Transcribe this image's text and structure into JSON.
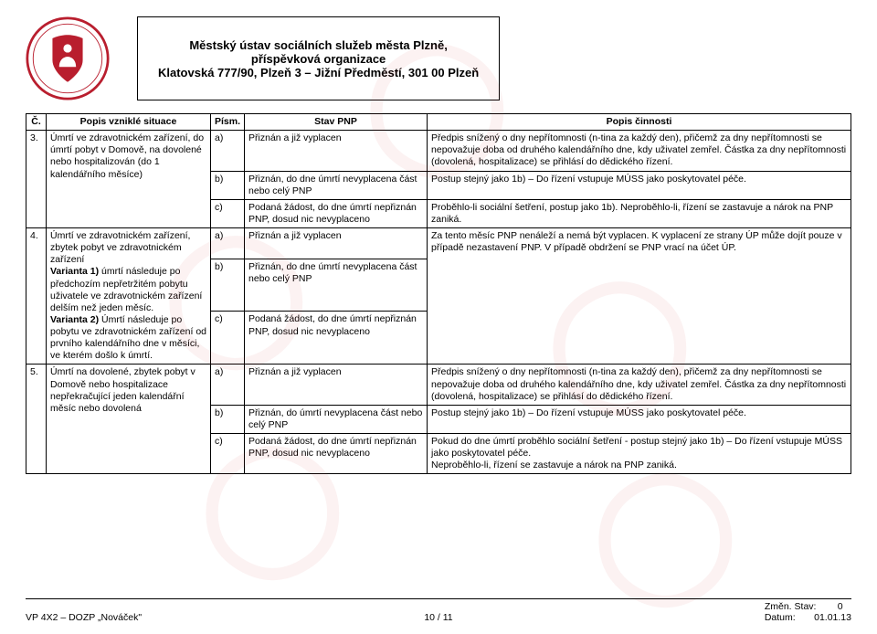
{
  "colors": {
    "brand_red": "#b91e2e",
    "watermark_rgba": "rgba(200,30,40,0.06)",
    "text": "#000000",
    "background": "#ffffff"
  },
  "header": {
    "org_line1": "Městský ústav sociálních služeb města Plzně,",
    "org_line2": "příspěvková organizace",
    "org_line3": "Klatovská 777/90, Plzeň 3 – Jižní Předměstí, 301 00 Plzeň"
  },
  "table": {
    "headers": {
      "num": "Č.",
      "situace": "Popis vzniklé situace",
      "pism": "Písm.",
      "stav": "Stav PNP",
      "popis": "Popis činnosti"
    },
    "rows": [
      {
        "num": "3.",
        "situace": "Úmrtí ve zdravotnickém zařízení, do úmrtí pobyt v Domově, na dovolené nebo hospitalizován (do 1 kalendářního měsíce)",
        "sub": [
          {
            "pism": "a)",
            "stav": "Přiznán a již vyplacen",
            "popis": "Předpis snížený o dny nepřítomnosti (n-tina za každý den), přičemž za dny nepřítomnosti se nepovažuje doba od druhého kalendářního dne, kdy uživatel zemřel. Částka za dny nepřítomnosti (dovolená, hospitalizace) se přihlásí do dědického řízení."
          },
          {
            "pism": "b)",
            "stav": "Přiznán, do dne úmrtí nevyplacena část nebo celý PNP",
            "popis": "Postup stejný jako 1b) – Do řízení vstupuje MÚSS jako poskytovatel péče."
          },
          {
            "pism": "c)",
            "stav": "Podaná žádost, do dne úmrtí nepřiznán PNP, dosud nic nevyplaceno",
            "popis": "Proběhlo-li sociální šetření, postup jako 1b). Neproběhlo-li, řízení se zastavuje a nárok na PNP zaniká."
          }
        ]
      },
      {
        "num": "4.",
        "situace_html": "Úmrtí ve zdravotnickém zařízení, zbytek pobyt ve zdravotnickém zařízení\n<b>Varianta 1)</b> úmrtí následuje po předchozím nepřetržitém pobytu uživatele ve zdravotnickém zařízení delším než jeden měsíc.\n<b>Varianta 2)</b> Úmrtí následuje po pobytu ve zdravotnickém zařízení od prvního kalendářního dne v měsíci, ve kterém došlo k úmrtí.",
        "sub": [
          {
            "pism": "a)",
            "stav": "Přiznán a již vyplacen",
            "popis": ""
          },
          {
            "pism": "b)",
            "stav": "Přiznán, do dne úmrtí nevyplacena část nebo celý PNP",
            "popis": ""
          },
          {
            "pism": "c)",
            "stav": "Podaná žádost, do dne úmrtí nepřiznán PNP, dosud nic nevyplaceno",
            "popis": "Za tento měsíc PNP nenáleží a nemá být vyplacen. K vyplacení ze strany ÚP může dojít pouze v případě nezastavení PNP. V případě obdržení se PNP vrací na účet ÚP."
          }
        ]
      },
      {
        "num": "5.",
        "situace": "Úmrtí na dovolené, zbytek pobyt v Domově nebo hospitalizace nepřekračující jeden kalendářní měsíc nebo dovolená",
        "sub": [
          {
            "pism": "a)",
            "stav": "Přiznán a již vyplacen",
            "popis": "Předpis snížený o dny nepřítomnosti (n-tina za každý den), přičemž za dny nepřítomnosti se nepovažuje doba od druhého kalendářního dne, kdy uživatel zemřel. Částka za dny nepřítomnosti (dovolená, hospitalizace) se přihlásí do dědického řízení."
          },
          {
            "pism": "b)",
            "stav": "Přiznán, do úmrtí nevyplacena část nebo celý PNP",
            "popis": "Postup stejný jako 1b) – Do řízení vstupuje MÚSS jako poskytovatel péče."
          },
          {
            "pism": "c)",
            "stav": "Podaná žádost, do dne úmrtí nepřiznán PNP, dosud nic nevyplaceno",
            "popis": "Pokud do dne úmrtí proběhlo sociální šetření - postup stejný jako 1b) – Do řízení vstupuje MÚSS jako poskytovatel péče.\nNeproběhlo-li, řízení se zastavuje a nárok na PNP zaniká."
          }
        ]
      }
    ]
  },
  "footer": {
    "left": "VP 4X2 – DOZP „Nováček\"",
    "center": "10 / 11",
    "right_line1_label": "Změn. Stav:",
    "right_line1_value": "0",
    "right_line2_label": "Datum:",
    "right_line2_value": "01.01.13"
  }
}
